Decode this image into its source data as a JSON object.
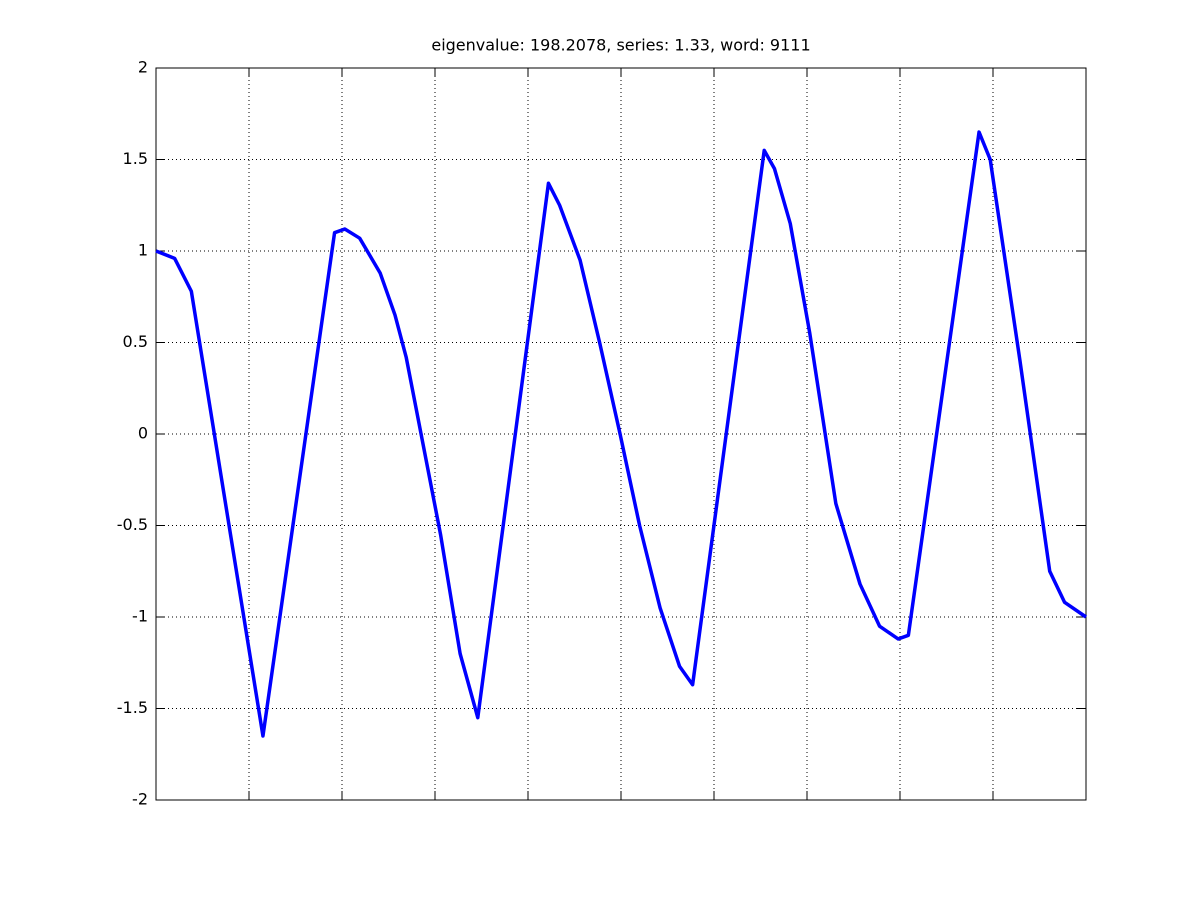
{
  "chart_data": {
    "type": "line",
    "title": "eigenvalue: 198.2078, series: 1.33, word: 9111",
    "x": [
      0,
      0.2,
      0.38,
      1.15,
      1.92,
      2.03,
      2.19,
      2.41,
      2.57,
      2.69,
      3.06,
      3.27,
      3.46,
      4.22,
      4.34,
      4.56,
      4.77,
      4.99,
      5.2,
      5.42,
      5.63,
      5.77,
      6.54,
      6.65,
      6.82,
      7.03,
      7.31,
      7.57,
      7.78,
      7.98,
      8.09,
      8.85,
      8.97,
      9.29,
      9.61,
      9.77,
      10
    ],
    "series": [
      {
        "color": "#0000ff",
        "values": [
          1.0,
          0.96,
          0.78,
          -1.65,
          1.1,
          1.12,
          1.07,
          0.88,
          0.65,
          0.42,
          -0.55,
          -1.2,
          -1.55,
          1.37,
          1.25,
          0.95,
          0.5,
          0.0,
          -0.5,
          -0.95,
          -1.27,
          -1.37,
          1.55,
          1.45,
          1.15,
          0.55,
          -0.38,
          -0.82,
          -1.05,
          -1.12,
          -1.1,
          1.65,
          1.5,
          0.4,
          -0.75,
          -0.92,
          -1.0
        ]
      }
    ],
    "xlim": [
      0,
      10
    ],
    "xticks": [
      1,
      2,
      3,
      4,
      5,
      6,
      7,
      8,
      9
    ],
    "ylim": [
      -2,
      2
    ],
    "yticks": [
      -2,
      -1.5,
      -1,
      -0.5,
      0,
      0.5,
      1,
      1.5,
      2
    ],
    "grid": true
  }
}
